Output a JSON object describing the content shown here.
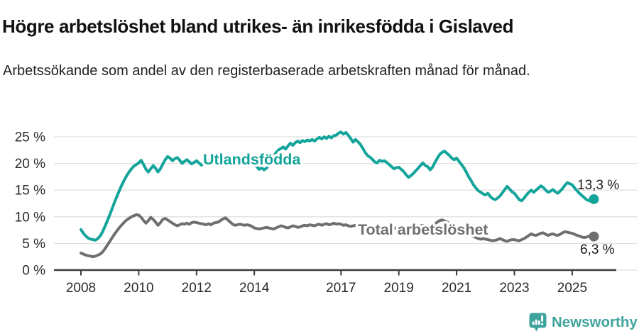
{
  "header": {
    "title": "Högre arbetslöshet bland utrikes- än inrikesfödda i Gislaved",
    "subtitle": "Arbetssökande som andel av den registerbaserade arbetskraften månad för månad."
  },
  "chart_data": {
    "type": "line",
    "title": "Högre arbetslöshet bland utrikes- än inrikesfödda i Gislaved",
    "subtitle": "Arbetssökande som andel av den registerbaserade arbetskraften månad för månad.",
    "unit": "%",
    "x_start": "2008-01",
    "x_end": "2025-10",
    "x_frequency": "monthly",
    "grid": "horizontal",
    "legend_position": "inline-labels",
    "xticks": [
      "2008",
      "2010",
      "2012",
      "2014",
      "2017",
      "2019",
      "2021",
      "2023",
      "2025"
    ],
    "yticks": [
      {
        "value": 0,
        "label": "0 %"
      },
      {
        "value": 5,
        "label": "5 %"
      },
      {
        "value": 10,
        "label": "10 %"
      },
      {
        "value": 15,
        "label": "15 %"
      },
      {
        "value": 20,
        "label": "20 %"
      },
      {
        "value": 25,
        "label": "25 %"
      }
    ],
    "ylim": [
      0,
      26.5
    ],
    "series": [
      {
        "name": "Utlandsfödda",
        "color": "#13a49b",
        "end_value": 13.3,
        "end_label": "13,3 %",
        "values": [
          7.6,
          6.9,
          6.4,
          6.0,
          5.8,
          5.7,
          5.6,
          5.9,
          6.4,
          7.2,
          8.2,
          9.3,
          10.4,
          11.6,
          12.8,
          13.9,
          15.0,
          16.0,
          16.9,
          17.7,
          18.4,
          19.0,
          19.5,
          19.8,
          20.1,
          20.6,
          19.8,
          18.9,
          18.4,
          19.0,
          19.6,
          19.1,
          18.4,
          19.0,
          19.9,
          20.7,
          21.3,
          21.0,
          20.5,
          20.9,
          21.1,
          20.6,
          20.0,
          20.4,
          20.7,
          20.3,
          19.9,
          20.2,
          20.5,
          20.1,
          19.7,
          20.0,
          20.4,
          20.7,
          20.3,
          19.9,
          20.2,
          20.5,
          20.2,
          19.9,
          20.2,
          20.6,
          20.9,
          20.5,
          20.2,
          20.5,
          20.8,
          20.4,
          20.0,
          20.3,
          20.6,
          20.2,
          19.9,
          19.4,
          18.9,
          19.2,
          18.8,
          19.1,
          19.8,
          20.6,
          21.4,
          22.0,
          22.5,
          22.8,
          23.1,
          22.7,
          23.3,
          23.8,
          23.4,
          23.9,
          24.2,
          23.9,
          24.3,
          24.1,
          24.4,
          24.2,
          24.5,
          24.2,
          24.6,
          24.9,
          24.6,
          25.0,
          24.7,
          25.1,
          24.8,
          25.2,
          25.3,
          25.7,
          25.9,
          25.5,
          25.8,
          25.3,
          24.7,
          24.0,
          24.5,
          24.1,
          23.6,
          22.9,
          22.1,
          21.5,
          21.2,
          20.8,
          20.3,
          20.1,
          20.6,
          20.4,
          20.5,
          20.2,
          19.8,
          19.4,
          19.0,
          19.2,
          19.3,
          18.9,
          18.5,
          17.9,
          17.4,
          17.7,
          18.1,
          18.6,
          19.1,
          19.6,
          20.1,
          19.6,
          19.4,
          18.8,
          19.3,
          20.2,
          21.0,
          21.7,
          22.1,
          22.3,
          21.9,
          21.5,
          21.0,
          20.7,
          21.0,
          20.4,
          19.8,
          19.2,
          18.4,
          17.5,
          16.8,
          16.0,
          15.4,
          14.9,
          14.6,
          14.3,
          14.1,
          14.4,
          13.8,
          13.4,
          13.2,
          13.5,
          13.9,
          14.5,
          15.1,
          15.7,
          15.2,
          14.7,
          14.4,
          13.8,
          13.2,
          13.0,
          13.5,
          14.1,
          14.6,
          15.0,
          14.6,
          15.0,
          15.4,
          15.8,
          15.5,
          15.0,
          14.6,
          14.8,
          15.1,
          14.7,
          14.4,
          14.8,
          15.3,
          15.9,
          16.4,
          16.2,
          16.0,
          15.4,
          14.9,
          14.4,
          14.0,
          13.6,
          13.2,
          13.0,
          13.1,
          13.3
        ]
      },
      {
        "name": "Total arbetslöshet",
        "color": "#6f6f6f",
        "end_value": 6.3,
        "end_label": "6,3 %",
        "values": [
          3.2,
          3.0,
          2.8,
          2.7,
          2.6,
          2.5,
          2.6,
          2.8,
          3.0,
          3.4,
          4.0,
          4.7,
          5.4,
          6.1,
          6.8,
          7.4,
          8.0,
          8.5,
          9.0,
          9.4,
          9.7,
          10.0,
          10.2,
          10.4,
          10.3,
          9.9,
          9.3,
          8.8,
          9.3,
          9.9,
          9.5,
          9.0,
          8.4,
          8.9,
          9.5,
          9.7,
          9.4,
          9.1,
          8.8,
          8.5,
          8.3,
          8.5,
          8.7,
          8.6,
          8.8,
          8.6,
          8.9,
          9.0,
          8.9,
          8.8,
          8.7,
          8.6,
          8.5,
          8.7,
          8.5,
          8.8,
          8.9,
          9.0,
          9.3,
          9.6,
          9.8,
          9.4,
          9.0,
          8.6,
          8.4,
          8.5,
          8.6,
          8.5,
          8.4,
          8.5,
          8.4,
          8.2,
          7.9,
          7.8,
          7.7,
          7.8,
          7.9,
          8.0,
          7.9,
          7.8,
          7.7,
          7.9,
          8.1,
          8.3,
          8.2,
          8.0,
          7.9,
          8.1,
          8.3,
          8.2,
          8.0,
          8.1,
          8.3,
          8.4,
          8.3,
          8.5,
          8.4,
          8.3,
          8.5,
          8.6,
          8.4,
          8.6,
          8.7,
          8.5,
          8.6,
          8.8,
          8.6,
          8.7,
          8.6,
          8.4,
          8.5,
          8.3,
          8.2,
          8.3,
          8.4,
          8.2,
          8.1,
          8.2,
          8.0,
          8.1,
          8.0,
          7.9,
          7.8,
          7.7,
          7.8,
          7.9,
          7.8,
          7.7,
          7.6,
          7.7,
          7.8,
          7.9,
          8.0,
          7.9,
          7.8,
          7.7,
          7.8,
          7.9,
          8.0,
          8.1,
          8.2,
          8.3,
          8.4,
          8.3,
          8.2,
          8.1,
          8.3,
          8.7,
          9.0,
          9.3,
          9.4,
          9.2,
          9.0,
          8.8,
          8.6,
          8.4,
          8.2,
          8.0,
          7.8,
          7.5,
          7.2,
          6.9,
          6.6,
          6.3,
          6.1,
          5.9,
          5.8,
          5.9,
          5.8,
          5.7,
          5.6,
          5.5,
          5.6,
          5.7,
          5.9,
          5.7,
          5.5,
          5.4,
          5.6,
          5.7,
          5.7,
          5.6,
          5.5,
          5.7,
          5.9,
          6.2,
          6.5,
          6.8,
          6.6,
          6.5,
          6.7,
          6.9,
          7.0,
          6.7,
          6.5,
          6.7,
          6.8,
          6.6,
          6.5,
          6.7,
          7.0,
          7.2,
          7.1,
          7.0,
          6.9,
          6.7,
          6.5,
          6.4,
          6.2,
          6.1,
          6.2,
          6.4,
          6.3,
          6.3
        ]
      }
    ],
    "colors": {
      "grid": "#e1e1e1",
      "axis": "#3b3b3b",
      "tick_label": "#2b2b2b",
      "annotation": "#1a1a1a"
    }
  },
  "branding": {
    "logo_text": "Newsworthy",
    "logo_color": "#3ea39d"
  }
}
